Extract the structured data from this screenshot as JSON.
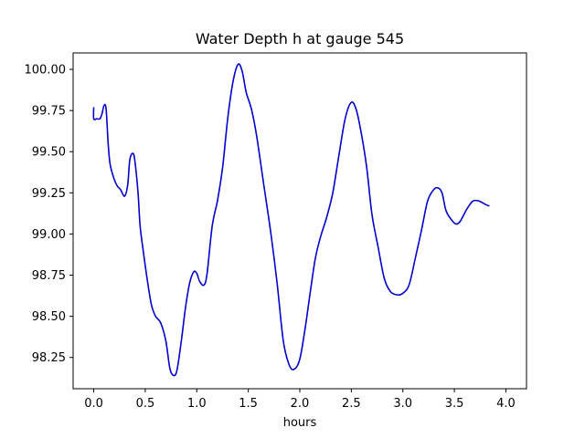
{
  "chart_data": {
    "type": "line",
    "title": "Water Depth h at gauge 545",
    "xlabel": "hours",
    "ylabel": "",
    "xlim": [
      -0.2,
      4.2
    ],
    "ylim": [
      98.06,
      100.1
    ],
    "xticks": [
      "0.0",
      "0.5",
      "1.0",
      "1.5",
      "2.0",
      "2.5",
      "3.0",
      "3.5",
      "4.0"
    ],
    "yticks": [
      "98.25",
      "98.50",
      "98.75",
      "99.00",
      "99.25",
      "99.50",
      "99.75",
      "100.00"
    ],
    "grid": false,
    "line_color": "#0000cc",
    "series": [
      {
        "points": [
          [
            0.0,
            99.77
          ],
          [
            0.0,
            99.7
          ],
          [
            0.03,
            99.7
          ],
          [
            0.06,
            99.7
          ],
          [
            0.08,
            99.73
          ],
          [
            0.1,
            99.78
          ],
          [
            0.12,
            99.76
          ],
          [
            0.14,
            99.55
          ],
          [
            0.16,
            99.42
          ],
          [
            0.2,
            99.33
          ],
          [
            0.23,
            99.29
          ],
          [
            0.26,
            99.27
          ],
          [
            0.3,
            99.23
          ],
          [
            0.33,
            99.3
          ],
          [
            0.35,
            99.45
          ],
          [
            0.38,
            99.49
          ],
          [
            0.4,
            99.44
          ],
          [
            0.43,
            99.25
          ],
          [
            0.45,
            99.05
          ],
          [
            0.48,
            98.9
          ],
          [
            0.52,
            98.72
          ],
          [
            0.56,
            98.57
          ],
          [
            0.6,
            98.5
          ],
          [
            0.65,
            98.46
          ],
          [
            0.7,
            98.35
          ],
          [
            0.74,
            98.18
          ],
          [
            0.78,
            98.14
          ],
          [
            0.81,
            98.18
          ],
          [
            0.85,
            98.35
          ],
          [
            0.89,
            98.55
          ],
          [
            0.93,
            98.7
          ],
          [
            0.97,
            98.77
          ],
          [
            1.0,
            98.76
          ],
          [
            1.03,
            98.71
          ],
          [
            1.07,
            98.69
          ],
          [
            1.1,
            98.76
          ],
          [
            1.15,
            99.05
          ],
          [
            1.2,
            99.2
          ],
          [
            1.25,
            99.4
          ],
          [
            1.3,
            99.7
          ],
          [
            1.35,
            99.92
          ],
          [
            1.4,
            100.03
          ],
          [
            1.44,
            99.99
          ],
          [
            1.48,
            99.86
          ],
          [
            1.53,
            99.76
          ],
          [
            1.58,
            99.6
          ],
          [
            1.65,
            99.3
          ],
          [
            1.72,
            99.0
          ],
          [
            1.78,
            98.7
          ],
          [
            1.84,
            98.35
          ],
          [
            1.9,
            98.2
          ],
          [
            1.95,
            98.18
          ],
          [
            2.0,
            98.24
          ],
          [
            2.05,
            98.42
          ],
          [
            2.1,
            98.64
          ],
          [
            2.15,
            98.85
          ],
          [
            2.2,
            98.98
          ],
          [
            2.26,
            99.1
          ],
          [
            2.32,
            99.25
          ],
          [
            2.38,
            99.48
          ],
          [
            2.44,
            99.7
          ],
          [
            2.5,
            99.8
          ],
          [
            2.55,
            99.75
          ],
          [
            2.6,
            99.6
          ],
          [
            2.65,
            99.4
          ],
          [
            2.7,
            99.12
          ],
          [
            2.76,
            98.92
          ],
          [
            2.82,
            98.73
          ],
          [
            2.88,
            98.65
          ],
          [
            2.95,
            98.63
          ],
          [
            3.0,
            98.64
          ],
          [
            3.06,
            98.69
          ],
          [
            3.12,
            98.85
          ],
          [
            3.18,
            99.02
          ],
          [
            3.24,
            99.2
          ],
          [
            3.3,
            99.27
          ],
          [
            3.34,
            99.28
          ],
          [
            3.38,
            99.25
          ],
          [
            3.42,
            99.14
          ],
          [
            3.48,
            99.08
          ],
          [
            3.52,
            99.06
          ],
          [
            3.56,
            99.08
          ],
          [
            3.62,
            99.15
          ],
          [
            3.68,
            99.2
          ],
          [
            3.74,
            99.2
          ],
          [
            3.8,
            99.18
          ],
          [
            3.84,
            99.17
          ]
        ]
      }
    ]
  }
}
